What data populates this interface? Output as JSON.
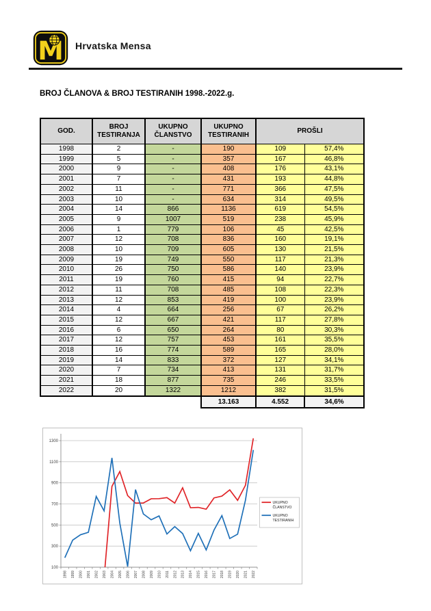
{
  "brand": {
    "name": "Hrvatska Mensa"
  },
  "title": "BROJ ČLANOVA & BROJ TESTIRANIH 1998.-2022.g.",
  "table": {
    "headers": {
      "god": "GOD.",
      "broj": "BROJ TESTIRANJA",
      "clanstvo": "UKUPNO ČLANSTVO",
      "testiranih": "UKUPNO TESTIRANIH",
      "prosli": "PROŠLI"
    },
    "rows": [
      [
        "1998",
        "2",
        "-",
        "190",
        "109",
        "57,4%"
      ],
      [
        "1999",
        "5",
        "-",
        "357",
        "167",
        "46,8%"
      ],
      [
        "2000",
        "9",
        "-",
        "408",
        "176",
        "43,1%"
      ],
      [
        "2001",
        "7",
        "-",
        "431",
        "193",
        "44,8%"
      ],
      [
        "2002",
        "11",
        "-",
        "771",
        "366",
        "47,5%"
      ],
      [
        "2003",
        "10",
        "-",
        "634",
        "314",
        "49,5%"
      ],
      [
        "2004",
        "14",
        "866",
        "1136",
        "619",
        "54,5%"
      ],
      [
        "2005",
        "9",
        "1007",
        "519",
        "238",
        "45,9%"
      ],
      [
        "2006",
        "1",
        "779",
        "106",
        "45",
        "42,5%"
      ],
      [
        "2007",
        "12",
        "708",
        "836",
        "160",
        "19,1%"
      ],
      [
        "2008",
        "10",
        "709",
        "605",
        "130",
        "21,5%"
      ],
      [
        "2009",
        "19",
        "749",
        "550",
        "117",
        "21,3%"
      ],
      [
        "2010",
        "26",
        "750",
        "586",
        "140",
        "23,9%"
      ],
      [
        "2011",
        "19",
        "760",
        "415",
        "94",
        "22,7%"
      ],
      [
        "2012",
        "11",
        "708",
        "485",
        "108",
        "22,3%"
      ],
      [
        "2013",
        "12",
        "853",
        "419",
        "100",
        "23,9%"
      ],
      [
        "2014",
        "4",
        "664",
        "256",
        "67",
        "26,2%"
      ],
      [
        "2015",
        "12",
        "667",
        "421",
        "117",
        "27,8%"
      ],
      [
        "2016",
        "6",
        "650",
        "264",
        "80",
        "30,3%"
      ],
      [
        "2017",
        "12",
        "757",
        "453",
        "161",
        "35,5%"
      ],
      [
        "2018",
        "16",
        "774",
        "589",
        "165",
        "28,0%"
      ],
      [
        "2019",
        "14",
        "833",
        "372",
        "127",
        "34,1%"
      ],
      [
        "2020",
        "7",
        "734",
        "413",
        "131",
        "31,7%"
      ],
      [
        "2021",
        "18",
        "877",
        "735",
        "246",
        "33,5%"
      ],
      [
        "2022",
        "20",
        "1322",
        "1212",
        "382",
        "31,5%"
      ]
    ],
    "totals": {
      "testiranih": "13.163",
      "prosli_count": "4.552",
      "prosli_pct": "34,6%"
    }
  },
  "chart_data": {
    "type": "line",
    "x_labels": [
      "1998",
      "1999",
      "2000",
      "2001",
      "2002",
      "2003",
      "2004",
      "2005",
      "2006",
      "2007",
      "2008",
      "2009",
      "2010",
      "2011",
      "2012",
      "2013",
      "2014",
      "2015",
      "2016",
      "2017",
      "2018",
      "2019",
      "2020",
      "2021",
      "2022"
    ],
    "series": [
      {
        "name": "UKUPNO ČLANSTVO",
        "color": "#e02428",
        "values": [
          0,
          0,
          0,
          0,
          0,
          0,
          866,
          1007,
          779,
          708,
          709,
          749,
          750,
          760,
          708,
          853,
          664,
          667,
          650,
          757,
          774,
          833,
          734,
          877,
          1322
        ]
      },
      {
        "name": "UKUPNO TESTIRANIH",
        "color": "#1f70b8",
        "values": [
          190,
          357,
          408,
          431,
          771,
          634,
          1136,
          519,
          106,
          836,
          605,
          550,
          586,
          415,
          485,
          419,
          256,
          421,
          264,
          453,
          589,
          372,
          413,
          735,
          1212
        ]
      }
    ],
    "title": "",
    "xlabel": "",
    "ylabel": "",
    "ylim": [
      100,
      1300
    ],
    "yticks": [
      100,
      300,
      500,
      700,
      900,
      1100,
      1300
    ],
    "grid": true,
    "legend_position": "right"
  },
  "colors": {
    "mensa_yellow": "#f2d11c",
    "header_gray": "#d6d6d6",
    "row_gray": "#f2f2f2",
    "table_green": "#c4d79b",
    "table_orange": "#fabf8f",
    "table_yellow": "#ffff99",
    "gridline": "#c3c3c3",
    "axis": "#909090"
  }
}
